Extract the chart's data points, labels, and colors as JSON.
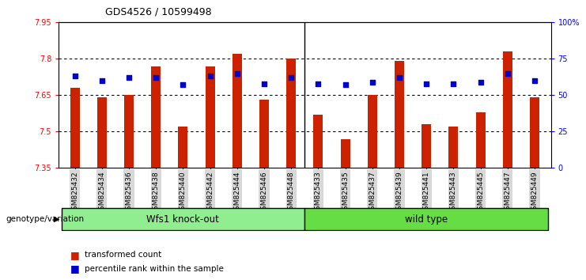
{
  "title": "GDS4526 / 10599498",
  "categories": [
    "GSM825432",
    "GSM825434",
    "GSM825436",
    "GSM825438",
    "GSM825440",
    "GSM825442",
    "GSM825444",
    "GSM825446",
    "GSM825448",
    "GSM825433",
    "GSM825435",
    "GSM825437",
    "GSM825439",
    "GSM825441",
    "GSM825443",
    "GSM825445",
    "GSM825447",
    "GSM825449"
  ],
  "bar_values": [
    7.68,
    7.64,
    7.65,
    7.77,
    7.52,
    7.77,
    7.82,
    7.63,
    7.8,
    7.57,
    7.47,
    7.65,
    7.79,
    7.53,
    7.52,
    7.58,
    7.83,
    7.64
  ],
  "percentile_values": [
    63,
    60,
    62,
    62,
    57,
    63,
    65,
    58,
    62,
    58,
    57,
    59,
    62,
    58,
    58,
    59,
    65,
    60
  ],
  "groups": [
    {
      "label": "Wfs1 knock-out",
      "start": 0,
      "end": 9,
      "color": "#90EE90"
    },
    {
      "label": "wild type",
      "start": 9,
      "end": 18,
      "color": "#66DD44"
    }
  ],
  "ymin": 7.35,
  "ymax": 7.95,
  "yticks": [
    7.35,
    7.5,
    7.65,
    7.8,
    7.95
  ],
  "grid_lines": [
    7.5,
    7.65,
    7.8
  ],
  "bar_color": "#CC2200",
  "dot_color": "#0000CC",
  "plot_bg": "#ffffff",
  "genotype_label": "genotype/variation",
  "legend_items": [
    {
      "label": "transformed count",
      "color": "#CC2200"
    },
    {
      "label": "percentile rank within the sample",
      "color": "#0000CC"
    }
  ],
  "group_separator": 8.5
}
